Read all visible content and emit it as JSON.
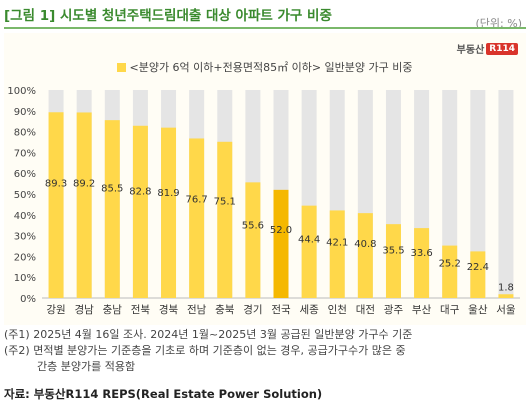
{
  "header": {
    "title": "[그림 1] 시도별 청년주택드림대출 대상 아파트 가구 비중",
    "unit": "(단위: %)"
  },
  "brand": {
    "name": "부동산",
    "mark": "R114"
  },
  "chart_data": {
    "type": "bar",
    "legend": "<분양가 6억 이하+전용면적85㎡ 이하> 일반분양 가구 비중",
    "categories": [
      "강원",
      "경남",
      "충남",
      "전북",
      "경북",
      "전남",
      "충북",
      "경기",
      "전국",
      "세종",
      "인천",
      "대전",
      "광주",
      "부산",
      "대구",
      "울산",
      "서울"
    ],
    "values": [
      89.3,
      89.2,
      85.5,
      82.8,
      81.9,
      76.7,
      75.1,
      55.6,
      52.0,
      44.4,
      42.1,
      40.8,
      35.5,
      33.6,
      25.2,
      22.4,
      1.8
    ],
    "value_labels": [
      "89.3",
      "89.2",
      "85.5",
      "82.8",
      "81.9",
      "76.7",
      "75.1",
      "55.6",
      "52.0",
      "44.4",
      "42.1",
      "40.8",
      "35.5",
      "33.6",
      "25.2",
      "22.4",
      "1.8"
    ],
    "highlight_index": 8,
    "y_ticks": [
      "0%",
      "10%",
      "20%",
      "30%",
      "40%",
      "50%",
      "60%",
      "70%",
      "80%",
      "90%",
      "100%"
    ],
    "ylim": [
      0,
      100
    ],
    "grid": false,
    "colors": {
      "bar": "#ffd84a",
      "highlight": "#f5b800",
      "background_bar": "#e5e5e5"
    }
  },
  "notes": [
    "(주1) 2025년 4월 16일 조사. 2024년 1월~2025년 3월 공급된 일반분양 가구수 기준",
    "(주2) 면적별 분양가는 기준층을 기초로 하며 기준층이 없는 경우, 공급가구수가 많은 중",
    "간층 분양가를 적용함"
  ],
  "source": "자료: 부동산R114 REPS(Real Estate Power Solution)"
}
